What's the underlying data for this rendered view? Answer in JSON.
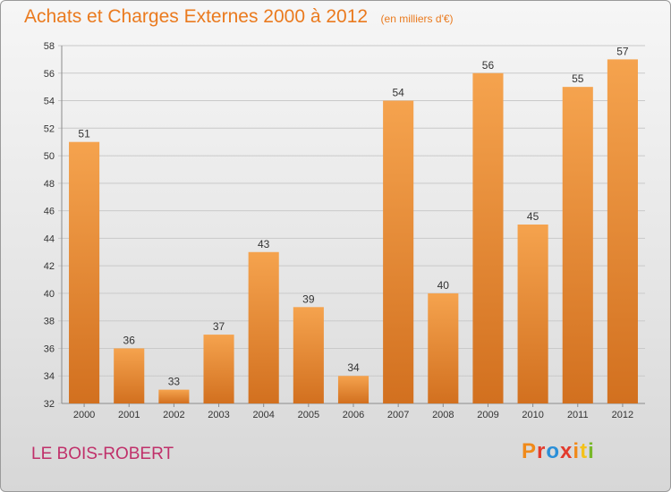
{
  "chart_data": {
    "type": "bar",
    "title": "Achats et Charges Externes 2000 à 2012",
    "subtitle": "(en milliers d'€)",
    "categories": [
      "2000",
      "2001",
      "2002",
      "2003",
      "2004",
      "2005",
      "2006",
      "2007",
      "2008",
      "2009",
      "2010",
      "2011",
      "2012"
    ],
    "values": [
      51,
      36,
      33,
      37,
      43,
      39,
      34,
      54,
      40,
      56,
      45,
      55,
      57
    ],
    "ylim": [
      32,
      58
    ],
    "yticks": [
      "32",
      "34",
      "36",
      "38",
      "40",
      "42",
      "44",
      "46",
      "48",
      "50",
      "52",
      "54",
      "56",
      "58"
    ],
    "xlabel": "",
    "ylabel": "",
    "grid": true,
    "bar_color_light": "#f5a34e",
    "bar_color_dark": "#d2701f"
  },
  "footer": {
    "commune": "LE BOIS-ROBERT",
    "logo_text": "Proxiti",
    "logo_colors": [
      "#f08a1a",
      "#e33a2c",
      "#2a8fd8",
      "#e33a2c",
      "#f08a1a",
      "#f4c21a",
      "#78b829"
    ]
  }
}
